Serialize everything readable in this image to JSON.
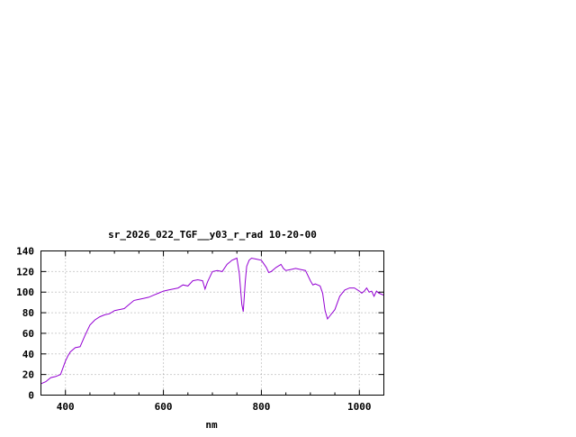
{
  "chart_data": {
    "type": "line",
    "title": "sr_2026_022_TGF__y03_r_rad 10-20-00",
    "xlabel": "nm",
    "ylabel": "",
    "xlim": [
      350,
      1050
    ],
    "ylim": [
      0,
      140
    ],
    "x_ticks": [
      400,
      600,
      800,
      1000
    ],
    "y_ticks": [
      0,
      20,
      40,
      60,
      80,
      100,
      120,
      140
    ],
    "grid": true,
    "line_color": "#9400d3",
    "series": [
      {
        "x": [
          350,
          360,
          370,
          380,
          390,
          400,
          405,
          410,
          420,
          430,
          440,
          450,
          460,
          470,
          480,
          490,
          500,
          510,
          520,
          530,
          540,
          550,
          560,
          570,
          580,
          590,
          600,
          610,
          620,
          630,
          640,
          650,
          660,
          670,
          680,
          685,
          690,
          700,
          710,
          720,
          730,
          740,
          750,
          755,
          760,
          763,
          767,
          770,
          775,
          780,
          790,
          800,
          810,
          815,
          820,
          830,
          840,
          845,
          850,
          860,
          870,
          880,
          890,
          900,
          905,
          910,
          920,
          925,
          930,
          935,
          940,
          950,
          960,
          970,
          980,
          990,
          1000,
          1005,
          1010,
          1015,
          1020,
          1025,
          1030,
          1035,
          1040,
          1045,
          1050
        ],
        "y": [
          11,
          13,
          17,
          18,
          20,
          33,
          38,
          42,
          46,
          47,
          58,
          68,
          73,
          76,
          78,
          79,
          82,
          83,
          84,
          88,
          92,
          93,
          94,
          95,
          97,
          99,
          101,
          102,
          103,
          104,
          107,
          106,
          111,
          112,
          111,
          103,
          110,
          120,
          121,
          120,
          127,
          131,
          133,
          118,
          88,
          81,
          110,
          125,
          131,
          133,
          132,
          131,
          124,
          119,
          120,
          124,
          127,
          123,
          121,
          122,
          123,
          122,
          121,
          111,
          107,
          108,
          106,
          99,
          82,
          74,
          77,
          83,
          96,
          102,
          104,
          104,
          101,
          99,
          101,
          104,
          100,
          101,
          96,
          101,
          99,
          98,
          97
        ]
      }
    ]
  }
}
